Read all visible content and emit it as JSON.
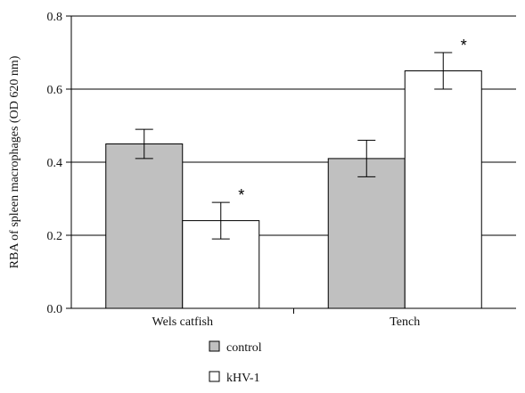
{
  "chart_data": {
    "type": "bar",
    "categories": [
      "Wels catfish",
      "Tench"
    ],
    "series": [
      {
        "name": "control",
        "color": "#c0c0c0",
        "values": [
          0.45,
          0.41
        ],
        "errors": [
          0.04,
          0.05
        ],
        "significance": [
          "",
          ""
        ]
      },
      {
        "name": "kHV-1",
        "color": "#ffffff",
        "values": [
          0.24,
          0.65
        ],
        "errors": [
          0.05,
          0.05
        ],
        "significance": [
          "*",
          "*"
        ]
      }
    ],
    "ylabel": "RBA of spleen macrophages (OD 620 nm)",
    "ylim": [
      0,
      0.8
    ],
    "yticks": [
      0.0,
      0.2,
      0.4,
      0.6,
      0.8
    ],
    "ytick_labels": [
      "0.0",
      "0.2",
      "0.4",
      "0.6",
      "0.8"
    ],
    "grid": "horizontal",
    "legend_position": "bottom"
  }
}
